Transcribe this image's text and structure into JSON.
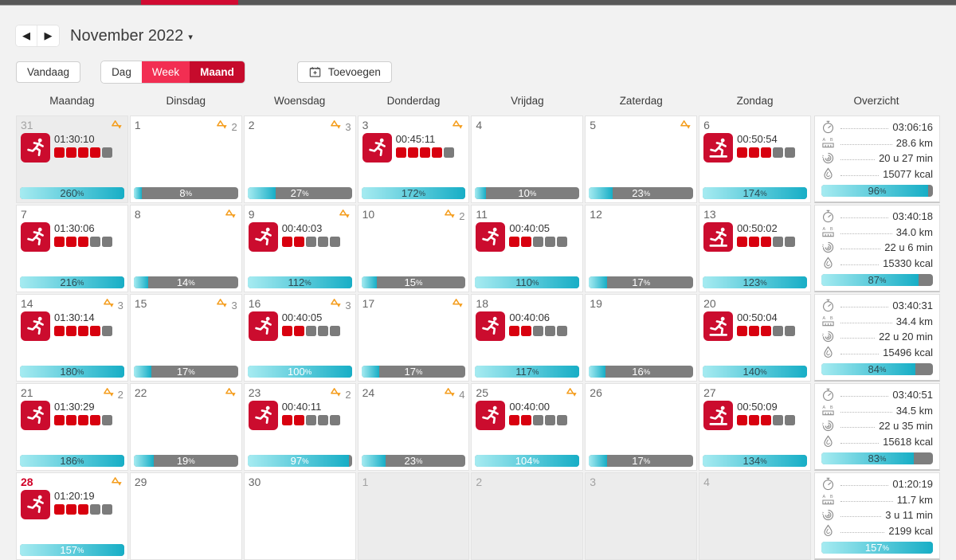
{
  "topbar": {
    "bar_color": "#585858",
    "active_tab_color": "#d10b32"
  },
  "month_nav": {
    "prev": "◀",
    "next": "▶",
    "title": "November 2022",
    "caret": "▾"
  },
  "toolbar": {
    "today": "Vandaag",
    "day": "Dag",
    "week": "Week",
    "month": "Maand",
    "add": "Toevoegen"
  },
  "labels": {
    "percent_suffix": "%"
  },
  "colors": {
    "accent_red": "#d10027",
    "button_week": "#f22e52",
    "button_month": "#c60b2c",
    "bar_fill_light": "#a6ebf1",
    "bar_fill_dark": "#17aec6",
    "bar_gray": "#7e7e7e",
    "block_red": "#d8000f",
    "block_gray": "#7b7b7b",
    "target_orange": "#f49d1d"
  },
  "weekdays": [
    "Maandag",
    "Dinsdag",
    "Woensdag",
    "Donderdag",
    "Vrijdag",
    "Zaterdag",
    "Zondag",
    "Overzicht"
  ],
  "weeks": [
    {
      "days": [
        {
          "num": "31",
          "variant": "other",
          "target": "",
          "workout": {
            "type": "run",
            "duration": "01:30:10",
            "red": 4
          },
          "bar": {
            "value": 260,
            "label": "260",
            "tone": "dark"
          }
        },
        {
          "num": "1",
          "variant": "",
          "target": "2",
          "workout": null,
          "bar": {
            "value": 8,
            "label": "8",
            "tone": "light"
          }
        },
        {
          "num": "2",
          "variant": "",
          "target": "3",
          "workout": null,
          "bar": {
            "value": 27,
            "label": "27",
            "tone": "light"
          }
        },
        {
          "num": "3",
          "variant": "",
          "target": "",
          "workout": {
            "type": "run",
            "duration": "00:45:11",
            "red": 4
          },
          "bar": {
            "value": 172,
            "label": "172",
            "tone": "dark"
          }
        },
        {
          "num": "4",
          "variant": "",
          "target": null,
          "workout": null,
          "bar": {
            "value": 10,
            "label": "10",
            "tone": "light"
          }
        },
        {
          "num": "5",
          "variant": "",
          "target": "",
          "workout": null,
          "bar": {
            "value": 23,
            "label": "23",
            "tone": "light"
          }
        },
        {
          "num": "6",
          "variant": "",
          "target": null,
          "workout": {
            "type": "treadmill",
            "duration": "00:50:54",
            "red": 3
          },
          "bar": {
            "value": 174,
            "label": "174",
            "tone": "dark"
          }
        }
      ],
      "summary": {
        "duration": "03:06:16",
        "distance": "28.6 km",
        "time": "20 u 27 min",
        "calories": "15077 kcal",
        "bar": {
          "value": 96,
          "label": "96",
          "tone": "dark"
        }
      }
    },
    {
      "days": [
        {
          "num": "7",
          "variant": "",
          "target": null,
          "workout": {
            "type": "run",
            "duration": "01:30:06",
            "red": 3
          },
          "bar": {
            "value": 216,
            "label": "216",
            "tone": "dark"
          }
        },
        {
          "num": "8",
          "variant": "",
          "target": "",
          "workout": null,
          "bar": {
            "value": 14,
            "label": "14",
            "tone": "light"
          }
        },
        {
          "num": "9",
          "variant": "",
          "target": "",
          "workout": {
            "type": "run",
            "duration": "00:40:03",
            "red": 2
          },
          "bar": {
            "value": 112,
            "label": "112",
            "tone": "dark"
          }
        },
        {
          "num": "10",
          "variant": "",
          "target": "2",
          "workout": null,
          "bar": {
            "value": 15,
            "label": "15",
            "tone": "light"
          }
        },
        {
          "num": "11",
          "variant": "",
          "target": null,
          "workout": {
            "type": "run",
            "duration": "00:40:05",
            "red": 2
          },
          "bar": {
            "value": 110,
            "label": "110",
            "tone": "dark"
          }
        },
        {
          "num": "12",
          "variant": "",
          "target": null,
          "workout": null,
          "bar": {
            "value": 17,
            "label": "17",
            "tone": "light"
          }
        },
        {
          "num": "13",
          "variant": "",
          "target": null,
          "workout": {
            "type": "treadmill",
            "duration": "00:50:02",
            "red": 3
          },
          "bar": {
            "value": 123,
            "label": "123",
            "tone": "dark"
          }
        }
      ],
      "summary": {
        "duration": "03:40:18",
        "distance": "34.0 km",
        "time": "22 u 6 min",
        "calories": "15330 kcal",
        "bar": {
          "value": 87,
          "label": "87",
          "tone": "dark"
        }
      }
    },
    {
      "days": [
        {
          "num": "14",
          "variant": "",
          "target": "3",
          "workout": {
            "type": "run",
            "duration": "01:30:14",
            "red": 4
          },
          "bar": {
            "value": 180,
            "label": "180",
            "tone": "dark"
          }
        },
        {
          "num": "15",
          "variant": "",
          "target": "3",
          "workout": null,
          "bar": {
            "value": 17,
            "label": "17",
            "tone": "light"
          }
        },
        {
          "num": "16",
          "variant": "",
          "target": "3",
          "workout": {
            "type": "run",
            "duration": "00:40:05",
            "red": 2
          },
          "bar": {
            "value": 100,
            "label": "100",
            "tone": "light"
          }
        },
        {
          "num": "17",
          "variant": "",
          "target": "",
          "workout": null,
          "bar": {
            "value": 17,
            "label": "17",
            "tone": "light"
          }
        },
        {
          "num": "18",
          "variant": "",
          "target": null,
          "workout": {
            "type": "run",
            "duration": "00:40:06",
            "red": 2
          },
          "bar": {
            "value": 117,
            "label": "117",
            "tone": "dark"
          }
        },
        {
          "num": "19",
          "variant": "",
          "target": null,
          "workout": null,
          "bar": {
            "value": 16,
            "label": "16",
            "tone": "light"
          }
        },
        {
          "num": "20",
          "variant": "",
          "target": null,
          "workout": {
            "type": "treadmill",
            "duration": "00:50:04",
            "red": 3
          },
          "bar": {
            "value": 140,
            "label": "140",
            "tone": "dark"
          }
        }
      ],
      "summary": {
        "duration": "03:40:31",
        "distance": "34.4 km",
        "time": "22 u 20 min",
        "calories": "15496 kcal",
        "bar": {
          "value": 84,
          "label": "84",
          "tone": "dark"
        }
      }
    },
    {
      "days": [
        {
          "num": "21",
          "variant": "",
          "target": "2",
          "workout": {
            "type": "run",
            "duration": "01:30:29",
            "red": 4
          },
          "bar": {
            "value": 186,
            "label": "186",
            "tone": "dark"
          }
        },
        {
          "num": "22",
          "variant": "",
          "target": "",
          "workout": null,
          "bar": {
            "value": 19,
            "label": "19",
            "tone": "light"
          }
        },
        {
          "num": "23",
          "variant": "",
          "target": "2",
          "workout": {
            "type": "run",
            "duration": "00:40:11",
            "red": 2
          },
          "bar": {
            "value": 97,
            "label": "97",
            "tone": "light"
          }
        },
        {
          "num": "24",
          "variant": "",
          "target": "4",
          "workout": null,
          "bar": {
            "value": 23,
            "label": "23",
            "tone": "light"
          }
        },
        {
          "num": "25",
          "variant": "",
          "target": "",
          "workout": {
            "type": "run",
            "duration": "00:40:00",
            "red": 2
          },
          "bar": {
            "value": 104,
            "label": "104",
            "tone": "light"
          }
        },
        {
          "num": "26",
          "variant": "",
          "target": null,
          "workout": null,
          "bar": {
            "value": 17,
            "label": "17",
            "tone": "light"
          }
        },
        {
          "num": "27",
          "variant": "",
          "target": null,
          "workout": {
            "type": "treadmill",
            "duration": "00:50:09",
            "red": 3
          },
          "bar": {
            "value": 134,
            "label": "134",
            "tone": "dark"
          }
        }
      ],
      "summary": {
        "duration": "03:40:51",
        "distance": "34.5 km",
        "time": "22 u 35 min",
        "calories": "15618 kcal",
        "bar": {
          "value": 83,
          "label": "83",
          "tone": "dark"
        }
      }
    },
    {
      "days": [
        {
          "num": "28",
          "variant": "today",
          "target": "",
          "workout": {
            "type": "run",
            "duration": "01:20:19",
            "red": 3
          },
          "bar": {
            "value": 157,
            "label": "157",
            "tone": "light"
          }
        },
        {
          "num": "29",
          "variant": "",
          "target": null,
          "workout": null,
          "bar": null
        },
        {
          "num": "30",
          "variant": "",
          "target": null,
          "workout": null,
          "bar": null
        },
        {
          "num": "1",
          "variant": "other",
          "target": null,
          "workout": null,
          "bar": null
        },
        {
          "num": "2",
          "variant": "other",
          "target": null,
          "workout": null,
          "bar": null
        },
        {
          "num": "3",
          "variant": "other",
          "target": null,
          "workout": null,
          "bar": null
        },
        {
          "num": "4",
          "variant": "other",
          "target": null,
          "workout": null,
          "bar": null
        }
      ],
      "summary": {
        "duration": "01:20:19",
        "distance": "11.7 km",
        "time": "3 u 11 min",
        "calories": "2199 kcal",
        "bar": {
          "value": 157,
          "label": "157",
          "tone": "light"
        }
      }
    }
  ]
}
